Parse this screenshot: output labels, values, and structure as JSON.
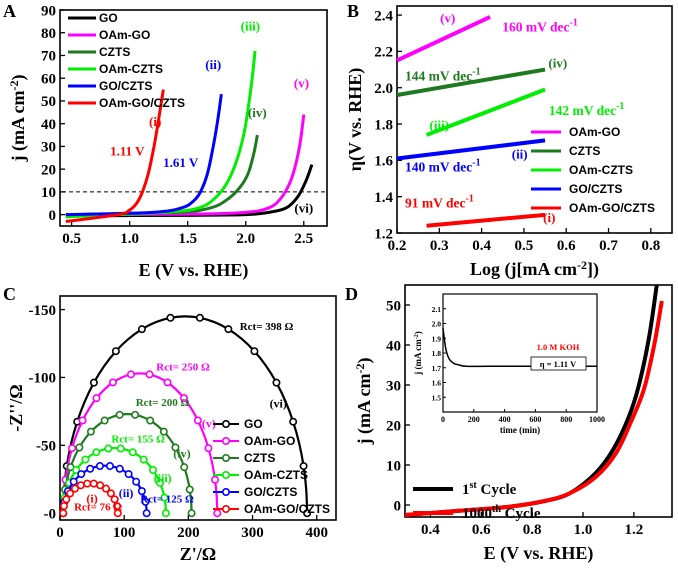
{
  "chart_data": [
    {
      "id": "A",
      "type": "line",
      "panel_label": "A",
      "xlabel": "E (V vs. RHE)",
      "ylabel": "j (mA cm",
      "ylabel_sup": "-2",
      "ylabel_end": ")",
      "xlim": [
        0.4,
        2.7
      ],
      "ylim": [
        -5,
        90
      ],
      "xticks": [
        0.5,
        1.0,
        1.5,
        2.0,
        2.5
      ],
      "xtick_labels": [
        "0.5",
        "1.0",
        "1.5",
        "2.0",
        "2.5"
      ],
      "yticks": [
        0,
        10,
        20,
        30,
        40,
        50,
        60,
        70,
        80,
        90
      ],
      "ytick_labels": [
        "0",
        "10",
        "20",
        "30",
        "40",
        "50",
        "60",
        "70",
        "80",
        "90"
      ],
      "reference_line": {
        "y": 10,
        "style": "dashed"
      },
      "legend": [
        "GO",
        "OAm-GO",
        "CZTS",
        "OAm-CZTS",
        "GO/CZTS",
        "OAm-GO/CZTS"
      ],
      "series": [
        {
          "name": "GO",
          "color": "#000000",
          "x": [
            0.45,
            1.5,
            2.0,
            2.2,
            2.35,
            2.45,
            2.52,
            2.57
          ],
          "y": [
            -0.5,
            -0.3,
            0,
            1,
            3,
            8,
            15,
            22
          ]
        },
        {
          "name": "OAm-GO",
          "color": "#ff00ff",
          "x": [
            0.45,
            1.5,
            2.0,
            2.2,
            2.3,
            2.38,
            2.43,
            2.47,
            2.5
          ],
          "y": [
            0,
            0.2,
            1,
            3,
            7,
            14,
            22,
            32,
            44
          ]
        },
        {
          "name": "CZTS",
          "color": "#1e7a1e",
          "x": [
            0.45,
            1.4,
            1.7,
            1.85,
            1.95,
            2.02,
            2.07,
            2.1
          ],
          "y": [
            0,
            1,
            3,
            7,
            12,
            18,
            27,
            35
          ]
        },
        {
          "name": "OAm-CZTS",
          "color": "#00ee00",
          "x": [
            0.45,
            1.3,
            1.6,
            1.75,
            1.85,
            1.93,
            1.99,
            2.03,
            2.06,
            2.08
          ],
          "y": [
            -1,
            1,
            3,
            8,
            15,
            25,
            37,
            50,
            62,
            72
          ]
        },
        {
          "name": "GO/CZTS",
          "color": "#0000ff",
          "x": [
            0.45,
            1.2,
            1.45,
            1.55,
            1.61,
            1.67,
            1.72,
            1.76,
            1.79
          ],
          "y": [
            0,
            1,
            3,
            6,
            10,
            18,
            30,
            42,
            53
          ]
        },
        {
          "name": "OAm-GO/CZTS",
          "color": "#ff0000",
          "x": [
            0.45,
            0.9,
            1.0,
            1.06,
            1.11,
            1.16,
            1.21,
            1.25,
            1.29
          ],
          "y": [
            -3,
            0,
            2,
            5,
            10,
            18,
            30,
            42,
            55
          ]
        }
      ],
      "annotations": [
        {
          "text": "(i)",
          "x": 1.22,
          "y": 39,
          "color": "#ff0000"
        },
        {
          "text": "(ii)",
          "x": 1.72,
          "y": 64,
          "color": "#0000ff"
        },
        {
          "text": "(iii)",
          "x": 2.04,
          "y": 81,
          "color": "#00ee00"
        },
        {
          "text": "(iv)",
          "x": 2.1,
          "y": 43,
          "color": "#1e7a1e"
        },
        {
          "text": "(v)",
          "x": 2.48,
          "y": 56,
          "color": "#ff00ff"
        },
        {
          "text": "(vi)",
          "x": 2.5,
          "y": 1,
          "color": "#000000"
        },
        {
          "text": "1.11 V",
          "x": 0.98,
          "y": 26,
          "color": "#ff0000"
        },
        {
          "text": "1.61 V",
          "x": 1.44,
          "y": 21,
          "color": "#0000ff"
        }
      ]
    },
    {
      "id": "B",
      "type": "line",
      "panel_label": "B",
      "xlabel": "Log (j[mA cm",
      "xlabel_sup": "-2",
      "xlabel_end": "])",
      "ylabel": "η(V vs. RHE)",
      "xlim": [
        0.2,
        0.85
      ],
      "ylim": [
        1.2,
        2.45
      ],
      "xticks": [
        0.2,
        0.3,
        0.4,
        0.5,
        0.6,
        0.7,
        0.8
      ],
      "xtick_labels": [
        "0.2",
        "0.3",
        "0.4",
        "0.5",
        "0.6",
        "0.7",
        "0.8"
      ],
      "yticks": [
        1.2,
        1.4,
        1.6,
        1.8,
        2.0,
        2.2,
        2.4
      ],
      "ytick_labels": [
        "1.2",
        "1.4",
        "1.6",
        "1.8",
        "2.0",
        "2.2",
        "2.4"
      ],
      "legend": [
        "OAm-GO",
        "CZTS",
        "OAm-CZTS",
        "GO/CZTS",
        "OAm-GO/CZTS"
      ],
      "series": [
        {
          "name": "OAm-GO",
          "color": "#ff00ff",
          "x": [
            0.2,
            0.42
          ],
          "y": [
            2.15,
            2.39
          ],
          "slope_label": "160 mV dec",
          "sup": "-1"
        },
        {
          "name": "CZTS",
          "color": "#1e7a1e",
          "x": [
            0.2,
            0.55
          ],
          "y": [
            1.96,
            2.1
          ],
          "slope_label": "144 mV dec",
          "sup": "-1"
        },
        {
          "name": "OAm-CZTS",
          "color": "#00ee00",
          "x": [
            0.27,
            0.55
          ],
          "y": [
            1.74,
            1.99
          ],
          "slope_label": "142 mV dec",
          "sup": "-1"
        },
        {
          "name": "GO/CZTS",
          "color": "#0000ff",
          "x": [
            0.2,
            0.55
          ],
          "y": [
            1.61,
            1.71
          ],
          "slope_label": "140 mV dec",
          "sup": "-1"
        },
        {
          "name": "OAm-GO/CZTS",
          "color": "#ff0000",
          "x": [
            0.27,
            0.55
          ],
          "y": [
            1.24,
            1.3
          ],
          "slope_label": "91 mV dec",
          "sup": "-1"
        }
      ],
      "annotations": [
        {
          "text": "(v)",
          "x": 0.32,
          "y": 2.36,
          "color": "#ff00ff"
        },
        {
          "text": "(iv)",
          "x": 0.58,
          "y": 2.11,
          "color": "#1e7a1e"
        },
        {
          "text": "(iii)",
          "x": 0.3,
          "y": 1.77,
          "color": "#00ee00"
        },
        {
          "text": "(ii)",
          "x": 0.49,
          "y": 1.61,
          "color": "#0000ff"
        },
        {
          "text": "(i)",
          "x": 0.56,
          "y": 1.26,
          "color": "#ff0000"
        }
      ]
    },
    {
      "id": "C",
      "type": "line",
      "panel_label": "C",
      "xlabel": "Z'/Ω",
      "ylabel": "-Z''/Ω",
      "xlim": [
        0,
        430
      ],
      "ylim": [
        5,
        -160
      ],
      "xticks": [
        0,
        100,
        200,
        300,
        400
      ],
      "xtick_labels": [
        "0",
        "100",
        "200",
        "300",
        "400"
      ],
      "yticks": [
        0,
        -50,
        -100,
        -150
      ],
      "ytick_labels": [
        "-0",
        "-50",
        "-100",
        "-150"
      ],
      "legend": [
        "GO",
        "OAm-GO",
        "CZTS",
        "OAm-CZTS",
        "GO/CZTS",
        "OAm-GO/CZTS"
      ],
      "series": [
        {
          "name": "GO",
          "color": "#000000",
          "start": 5,
          "end": 385,
          "peak": -145,
          "rct_label": "Rct= 398 Ω",
          "roman": "(vi)"
        },
        {
          "name": "OAm-GO",
          "color": "#ff00ff",
          "start": 5,
          "end": 245,
          "peak": -103,
          "rct_label": "Rct= 250 Ω",
          "roman": "(v)"
        },
        {
          "name": "CZTS",
          "color": "#1e7a1e",
          "start": 5,
          "end": 205,
          "peak": -73,
          "rct_label": "Rct= 200 Ω",
          "roman": "(iv)"
        },
        {
          "name": "OAm-CZTS",
          "color": "#00ee00",
          "start": 5,
          "end": 165,
          "peak": -48,
          "rct_label": "Rct= 155 Ω",
          "roman": "(iii)"
        },
        {
          "name": "GO/CZTS",
          "color": "#0000ff",
          "start": 5,
          "end": 135,
          "peak": -35,
          "rct_label": "Rct= 125 Ω",
          "roman": "(ii)"
        },
        {
          "name": "OAm-GO/CZTS",
          "color": "#ff0000",
          "start": 5,
          "end": 90,
          "peak": -22,
          "rct_label": "Rct= 76 Ω",
          "roman": "(i)"
        }
      ]
    },
    {
      "id": "D",
      "type": "line",
      "panel_label": "D",
      "xlabel": "E (V vs. RHE)",
      "ylabel": "j (mA cm",
      "ylabel_sup": "-2",
      "ylabel_end": ")",
      "xlim": [
        0.3,
        1.35
      ],
      "ylim": [
        -3,
        55
      ],
      "xticks": [
        0.4,
        0.6,
        0.8,
        1.0,
        1.2
      ],
      "xtick_labels": [
        "0.4",
        "0.6",
        "0.8",
        "1.0",
        "1.2"
      ],
      "yticks": [
        0,
        10,
        20,
        30,
        40,
        50
      ],
      "ytick_labels": [
        "0",
        "10",
        "20",
        "30",
        "40",
        "50"
      ],
      "legend": [
        {
          "label": "1",
          "sup": "st",
          "suffix": " Cycle",
          "color": "#000000"
        },
        {
          "label": "1000",
          "sup": "th",
          "suffix": " Cycle",
          "color": "#ff0000"
        }
      ],
      "series": [
        {
          "name": "1st Cycle",
          "color": "#000000",
          "x": [
            0.3,
            0.5,
            0.7,
            0.85,
            0.95,
            1.05,
            1.12,
            1.18,
            1.22,
            1.26,
            1.29
          ],
          "y": [
            -2.5,
            -1.5,
            -0.5,
            1,
            3,
            8,
            14,
            22,
            30,
            42,
            55
          ]
        },
        {
          "name": "1000th Cycle",
          "color": "#ff0000",
          "x": [
            0.3,
            0.5,
            0.7,
            0.85,
            0.95,
            1.05,
            1.13,
            1.19,
            1.24,
            1.28,
            1.31
          ],
          "y": [
            -2.5,
            -1.5,
            -0.5,
            1,
            3,
            7,
            13,
            21,
            29,
            40,
            51
          ]
        }
      ],
      "inset": {
        "type": "line",
        "xlabel": "time (min)",
        "ylabel": "j (mA cm",
        "ylabel_sup": "-2",
        "ylabel_end": ")",
        "xlim": [
          0,
          1000
        ],
        "ylim": [
          1.4,
          2.2
        ],
        "xticks": [
          0,
          200,
          400,
          600,
          800,
          1000
        ],
        "xtick_labels": [
          "0",
          "200",
          "400",
          "600",
          "800",
          "1000"
        ],
        "yticks": [
          1.5,
          1.6,
          1.7,
          1.8,
          1.9,
          2.0,
          2.1
        ],
        "ytick_labels": [
          "1.5",
          "1.6",
          "1.7",
          "1.8",
          "1.9",
          "2.0",
          "2.1"
        ],
        "series": [
          {
            "name": "stability",
            "color": "#000000",
            "x": [
              0,
              8,
              20,
              40,
              70,
              100,
              150,
              300,
              600,
              1000
            ],
            "y": [
              1.97,
              1.9,
              1.82,
              1.76,
              1.73,
              1.72,
              1.71,
              1.71,
              1.71,
              1.71
            ]
          }
        ],
        "electrolyte_label": "1.0 M KOH",
        "eta_label": "η = 1.11 V"
      }
    }
  ]
}
